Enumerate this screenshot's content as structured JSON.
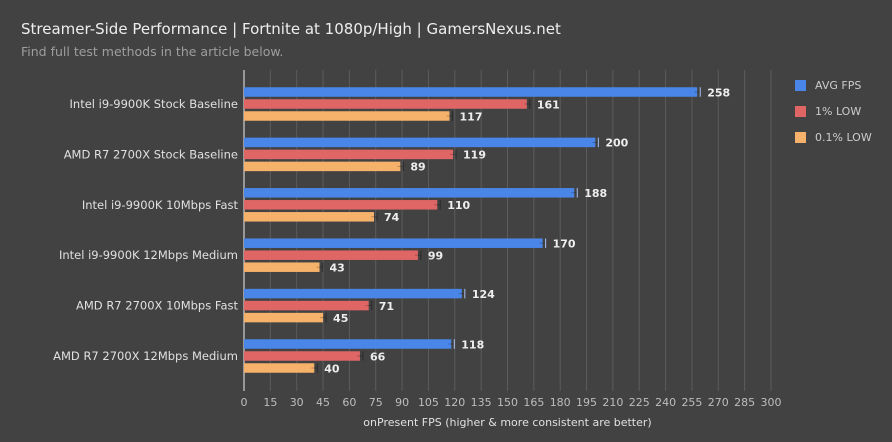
{
  "chart_data": {
    "type": "bar",
    "orientation": "horizontal",
    "title": "Streamer-Side Performance | Fortnite at 1080p/High | GamersNexus.net",
    "subtitle": "Find full test methods in the article below.",
    "xlabel": "onPresent FPS (higher & more consistent are better)",
    "ylabel": "",
    "xlim": [
      0,
      300
    ],
    "xticks": [
      0,
      15,
      30,
      45,
      60,
      75,
      90,
      105,
      120,
      135,
      150,
      165,
      180,
      195,
      210,
      225,
      240,
      255,
      270,
      285,
      300
    ],
    "grid": true,
    "legend_position": "right",
    "categories": [
      "Intel i9-9900K Stock Baseline",
      "AMD R7 2700X Stock Baseline",
      "Intel i9-9900K 10Mbps Fast",
      "Intel i9-9900K 12Mbps Medium",
      "AMD R7 2700X 10Mbps Fast",
      "AMD R7 2700X 12Mbps Medium"
    ],
    "series": [
      {
        "name": "AVG FPS",
        "color": "#4a86e8",
        "values": [
          258,
          200,
          188,
          170,
          124,
          118
        ]
      },
      {
        "name": "1% LOW",
        "color": "#e06666",
        "values": [
          161,
          119,
          110,
          99,
          71,
          66
        ]
      },
      {
        "name": "0.1% LOW",
        "color": "#f6b26b",
        "values": [
          117,
          89,
          74,
          43,
          45,
          40
        ]
      }
    ],
    "error_bars": true
  }
}
